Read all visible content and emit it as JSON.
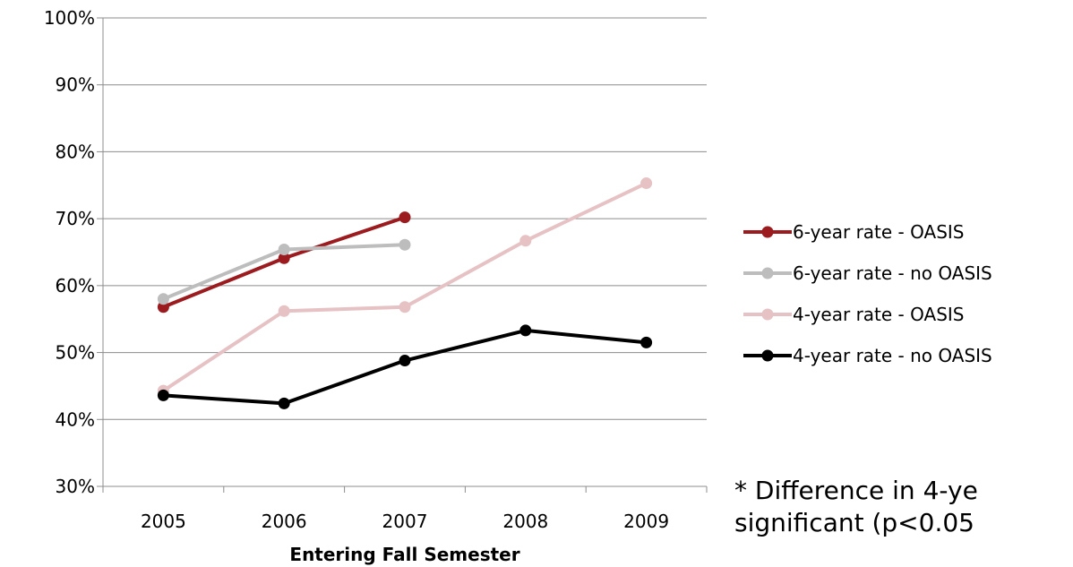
{
  "chart_data": {
    "type": "line",
    "title": "",
    "xlabel": "Entering Fall Semester",
    "ylabel": "",
    "categories": [
      "2005",
      "2006",
      "2007",
      "2008",
      "2009"
    ],
    "ylim": [
      30,
      100
    ],
    "yticks": [
      "30%",
      "40%",
      "50%",
      "60%",
      "70%",
      "80%",
      "90%",
      "100%"
    ],
    "grid": true,
    "legend_position": "right",
    "series": [
      {
        "name": "6-year rate - OASIS",
        "color": "#9b1b1f",
        "values": [
          56.8,
          64.1,
          70.2,
          null,
          null
        ]
      },
      {
        "name": "6-year rate - no OASIS",
        "color": "#bdbdbd",
        "values": [
          58.0,
          65.4,
          66.1,
          null,
          null
        ]
      },
      {
        "name": "4-year rate - OASIS",
        "color": "#e6c2c4",
        "values": [
          44.3,
          56.2,
          56.8,
          66.7,
          75.3
        ]
      },
      {
        "name": "4-year rate - no OASIS",
        "color": "#000000",
        "values": [
          43.6,
          42.4,
          48.8,
          53.3,
          51.5
        ]
      }
    ]
  },
  "note": {
    "line1": "* Difference in 4-ye",
    "line2": "significant (p<0.05"
  }
}
